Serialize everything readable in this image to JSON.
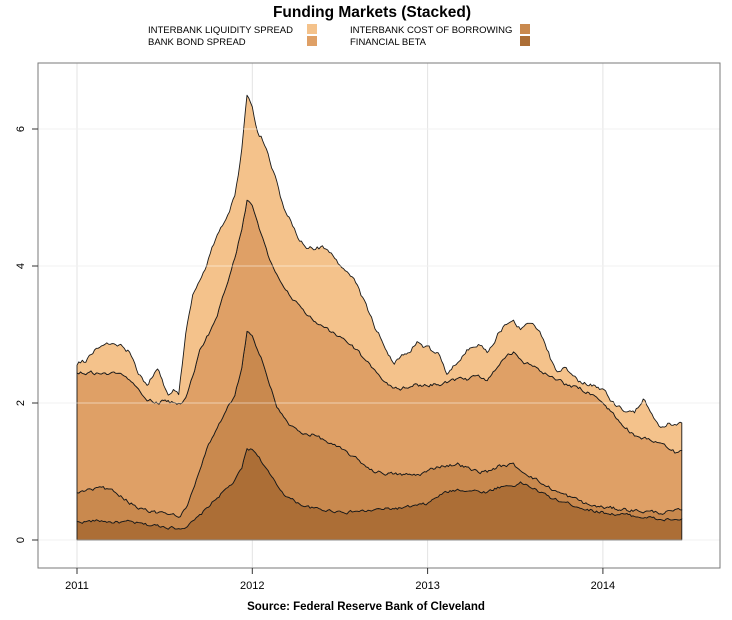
{
  "caption": "Source: Federal Reserve Bank of Cleveland",
  "legend": {
    "items": [
      {
        "label": "INTERBANK LIQUIDITY SPREAD",
        "color": "#F4C28B"
      },
      {
        "label": "BANK BOND SPREAD",
        "color": "#DFA066"
      },
      {
        "label": "INTERBANK COST OF BORROWING",
        "color": "#C9894E"
      },
      {
        "label": "FINANCIAL BETA",
        "color": "#AC6E36"
      }
    ],
    "position": "top"
  },
  "chart_data": {
    "type": "area",
    "stacked": true,
    "title": "Funding Markets (Stacked)",
    "xlabel": "",
    "ylabel": "",
    "xlim": [
      2010.78,
      2014.67
    ],
    "ylim": [
      -0.41,
      6.97
    ],
    "grid": true,
    "xticks": [
      2011,
      2012,
      2013,
      2014
    ],
    "xtick_labels": [
      "2011",
      "2012",
      "2013",
      "2014"
    ],
    "yticks": [
      0,
      2,
      4,
      6
    ],
    "ytick_labels": [
      "0",
      "2",
      "4",
      "6"
    ],
    "x": [
      2011.0,
      2011.05,
      2011.1,
      2011.15,
      2011.2,
      2011.25,
      2011.3,
      2011.35,
      2011.4,
      2011.46,
      2011.52,
      2011.55,
      2011.58,
      2011.62,
      2011.66,
      2011.7,
      2011.75,
      2011.8,
      2011.85,
      2011.9,
      2011.94,
      2011.97,
      2012.0,
      2012.03,
      2012.06,
      2012.1,
      2012.14,
      2012.18,
      2012.22,
      2012.27,
      2012.31,
      2012.35,
      2012.4,
      2012.45,
      2012.5,
      2012.55,
      2012.6,
      2012.65,
      2012.7,
      2012.75,
      2012.81,
      2012.87,
      2012.94,
      2013.0,
      2013.06,
      2013.11,
      2013.18,
      2013.25,
      2013.3,
      2013.34,
      2013.4,
      2013.45,
      2013.49,
      2013.53,
      2013.57,
      2013.62,
      2013.66,
      2013.7,
      2013.74,
      2013.78,
      2013.82,
      2013.86,
      2013.92,
      2013.99,
      2014.06,
      2014.12,
      2014.18,
      2014.23,
      2014.28,
      2014.33,
      2014.38,
      2014.42,
      2014.45
    ],
    "series": [
      {
        "name": "FINANCIAL BETA",
        "color": "#AC6E36",
        "values": [
          0.26,
          0.27,
          0.28,
          0.28,
          0.26,
          0.26,
          0.26,
          0.24,
          0.22,
          0.21,
          0.19,
          0.18,
          0.17,
          0.2,
          0.26,
          0.35,
          0.49,
          0.62,
          0.74,
          0.86,
          1.05,
          1.33,
          1.32,
          1.25,
          1.12,
          0.95,
          0.8,
          0.68,
          0.6,
          0.53,
          0.49,
          0.46,
          0.44,
          0.43,
          0.42,
          0.41,
          0.42,
          0.42,
          0.44,
          0.45,
          0.46,
          0.47,
          0.5,
          0.53,
          0.64,
          0.7,
          0.74,
          0.72,
          0.71,
          0.7,
          0.77,
          0.79,
          0.8,
          0.83,
          0.8,
          0.73,
          0.67,
          0.62,
          0.58,
          0.55,
          0.52,
          0.49,
          0.44,
          0.41,
          0.38,
          0.37,
          0.35,
          0.34,
          0.32,
          0.29,
          0.3,
          0.29,
          0.31
        ]
      },
      {
        "name": "INTERBANK COST OF BORROWING",
        "color": "#C9894E",
        "values": [
          0.43,
          0.44,
          0.47,
          0.48,
          0.46,
          0.39,
          0.29,
          0.24,
          0.22,
          0.19,
          0.18,
          0.18,
          0.17,
          0.25,
          0.44,
          0.65,
          0.89,
          1.0,
          1.14,
          1.26,
          1.45,
          1.7,
          1.63,
          1.55,
          1.5,
          1.3,
          1.15,
          1.1,
          1.06,
          1.05,
          1.06,
          1.08,
          1.03,
          0.97,
          0.91,
          0.85,
          0.75,
          0.66,
          0.56,
          0.53,
          0.5,
          0.48,
          0.45,
          0.47,
          0.44,
          0.39,
          0.37,
          0.3,
          0.29,
          0.3,
          0.3,
          0.3,
          0.3,
          0.19,
          0.17,
          0.15,
          0.14,
          0.14,
          0.12,
          0.11,
          0.1,
          0.09,
          0.07,
          0.07,
          0.08,
          0.08,
          0.08,
          0.08,
          0.09,
          0.11,
          0.11,
          0.13,
          0.13
        ]
      },
      {
        "name": "BANK BOND SPREAD",
        "color": "#DFA066",
        "values": [
          1.76,
          1.74,
          1.69,
          1.67,
          1.7,
          1.75,
          1.81,
          1.74,
          1.6,
          1.6,
          1.66,
          1.64,
          1.64,
          1.6,
          1.7,
          1.78,
          1.62,
          1.68,
          1.82,
          1.98,
          2.05,
          1.92,
          1.9,
          1.85,
          1.78,
          1.83,
          1.95,
          1.92,
          1.89,
          1.82,
          1.75,
          1.68,
          1.63,
          1.63,
          1.63,
          1.62,
          1.59,
          1.52,
          1.47,
          1.35,
          1.23,
          1.28,
          1.31,
          1.28,
          1.18,
          1.21,
          1.22,
          1.34,
          1.37,
          1.34,
          1.48,
          1.59,
          1.63,
          1.6,
          1.6,
          1.62,
          1.63,
          1.62,
          1.62,
          1.62,
          1.63,
          1.64,
          1.65,
          1.55,
          1.36,
          1.21,
          1.1,
          1.08,
          1.04,
          0.98,
          0.92,
          0.84,
          0.87
        ]
      },
      {
        "name": "INTERBANK LIQUIDITY SPREAD",
        "color": "#F4C28B",
        "values": [
          0.13,
          0.17,
          0.33,
          0.43,
          0.47,
          0.44,
          0.39,
          0.18,
          0.25,
          0.5,
          0.09,
          0.19,
          0.14,
          0.95,
          1.15,
          1.02,
          1.1,
          1.15,
          1.02,
          0.9,
          1.15,
          1.53,
          1.5,
          1.3,
          1.44,
          1.47,
          1.3,
          1.15,
          1.13,
          1.0,
          1.0,
          1.03,
          1.17,
          1.12,
          1.07,
          1.05,
          0.94,
          0.82,
          0.65,
          0.52,
          0.37,
          0.49,
          0.61,
          0.52,
          0.44,
          0.12,
          0.33,
          0.47,
          0.48,
          0.39,
          0.44,
          0.49,
          0.51,
          0.45,
          0.57,
          0.59,
          0.51,
          0.28,
          0.16,
          0.27,
          0.15,
          0.09,
          0.12,
          0.17,
          0.18,
          0.24,
          0.35,
          0.58,
          0.37,
          0.25,
          0.37,
          0.4,
          0.4
        ]
      }
    ]
  }
}
